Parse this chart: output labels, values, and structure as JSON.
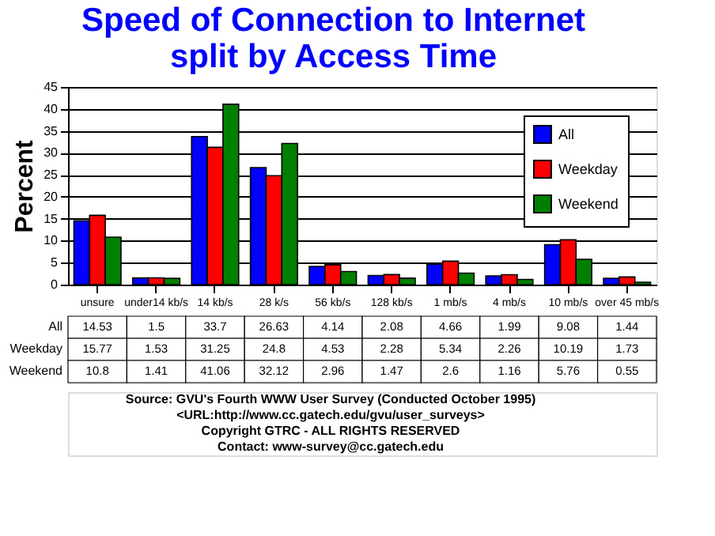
{
  "chart_data": {
    "type": "bar",
    "title": "Speed of Connection to Internet\nsplit by Access Time",
    "ylabel": "Percent",
    "categories": [
      "unsure",
      "under14 kb/s",
      "14 kb/s",
      "28 k/s",
      "56 kb/s",
      "128 kb/s",
      "1 mb/s",
      "4 mb/s",
      "10 mb/s",
      "over 45 mb/s"
    ],
    "series": [
      {
        "name": "All",
        "color": "#0000ff",
        "values": [
          14.53,
          1.5,
          33.7,
          26.63,
          4.14,
          2.08,
          4.66,
          1.99,
          9.08,
          1.44
        ]
      },
      {
        "name": "Weekday",
        "color": "#ff0000",
        "values": [
          15.77,
          1.53,
          31.25,
          24.8,
          4.53,
          2.28,
          5.34,
          2.26,
          10.19,
          1.73
        ]
      },
      {
        "name": "Weekend",
        "color": "#008000",
        "values": [
          10.8,
          1.41,
          41.06,
          32.12,
          2.96,
          1.47,
          2.6,
          1.16,
          5.76,
          0.55
        ]
      }
    ],
    "ylim": [
      0,
      45
    ],
    "yticks": [
      0,
      5,
      10,
      15,
      20,
      25,
      30,
      35,
      40,
      45
    ],
    "grid": "y",
    "legend": "top right",
    "data_labels": true,
    "annotations": [
      "Source: GVU's Fourth WWW User Survey (Conducted October 1995)",
      "<URL:http://www.cc.gatech.edu/gvu/user_surveys>",
      "Copyright GTRC -  ALL RIGHTS RESERVED",
      "Contact: www-survey@cc.gatech.edu"
    ]
  }
}
